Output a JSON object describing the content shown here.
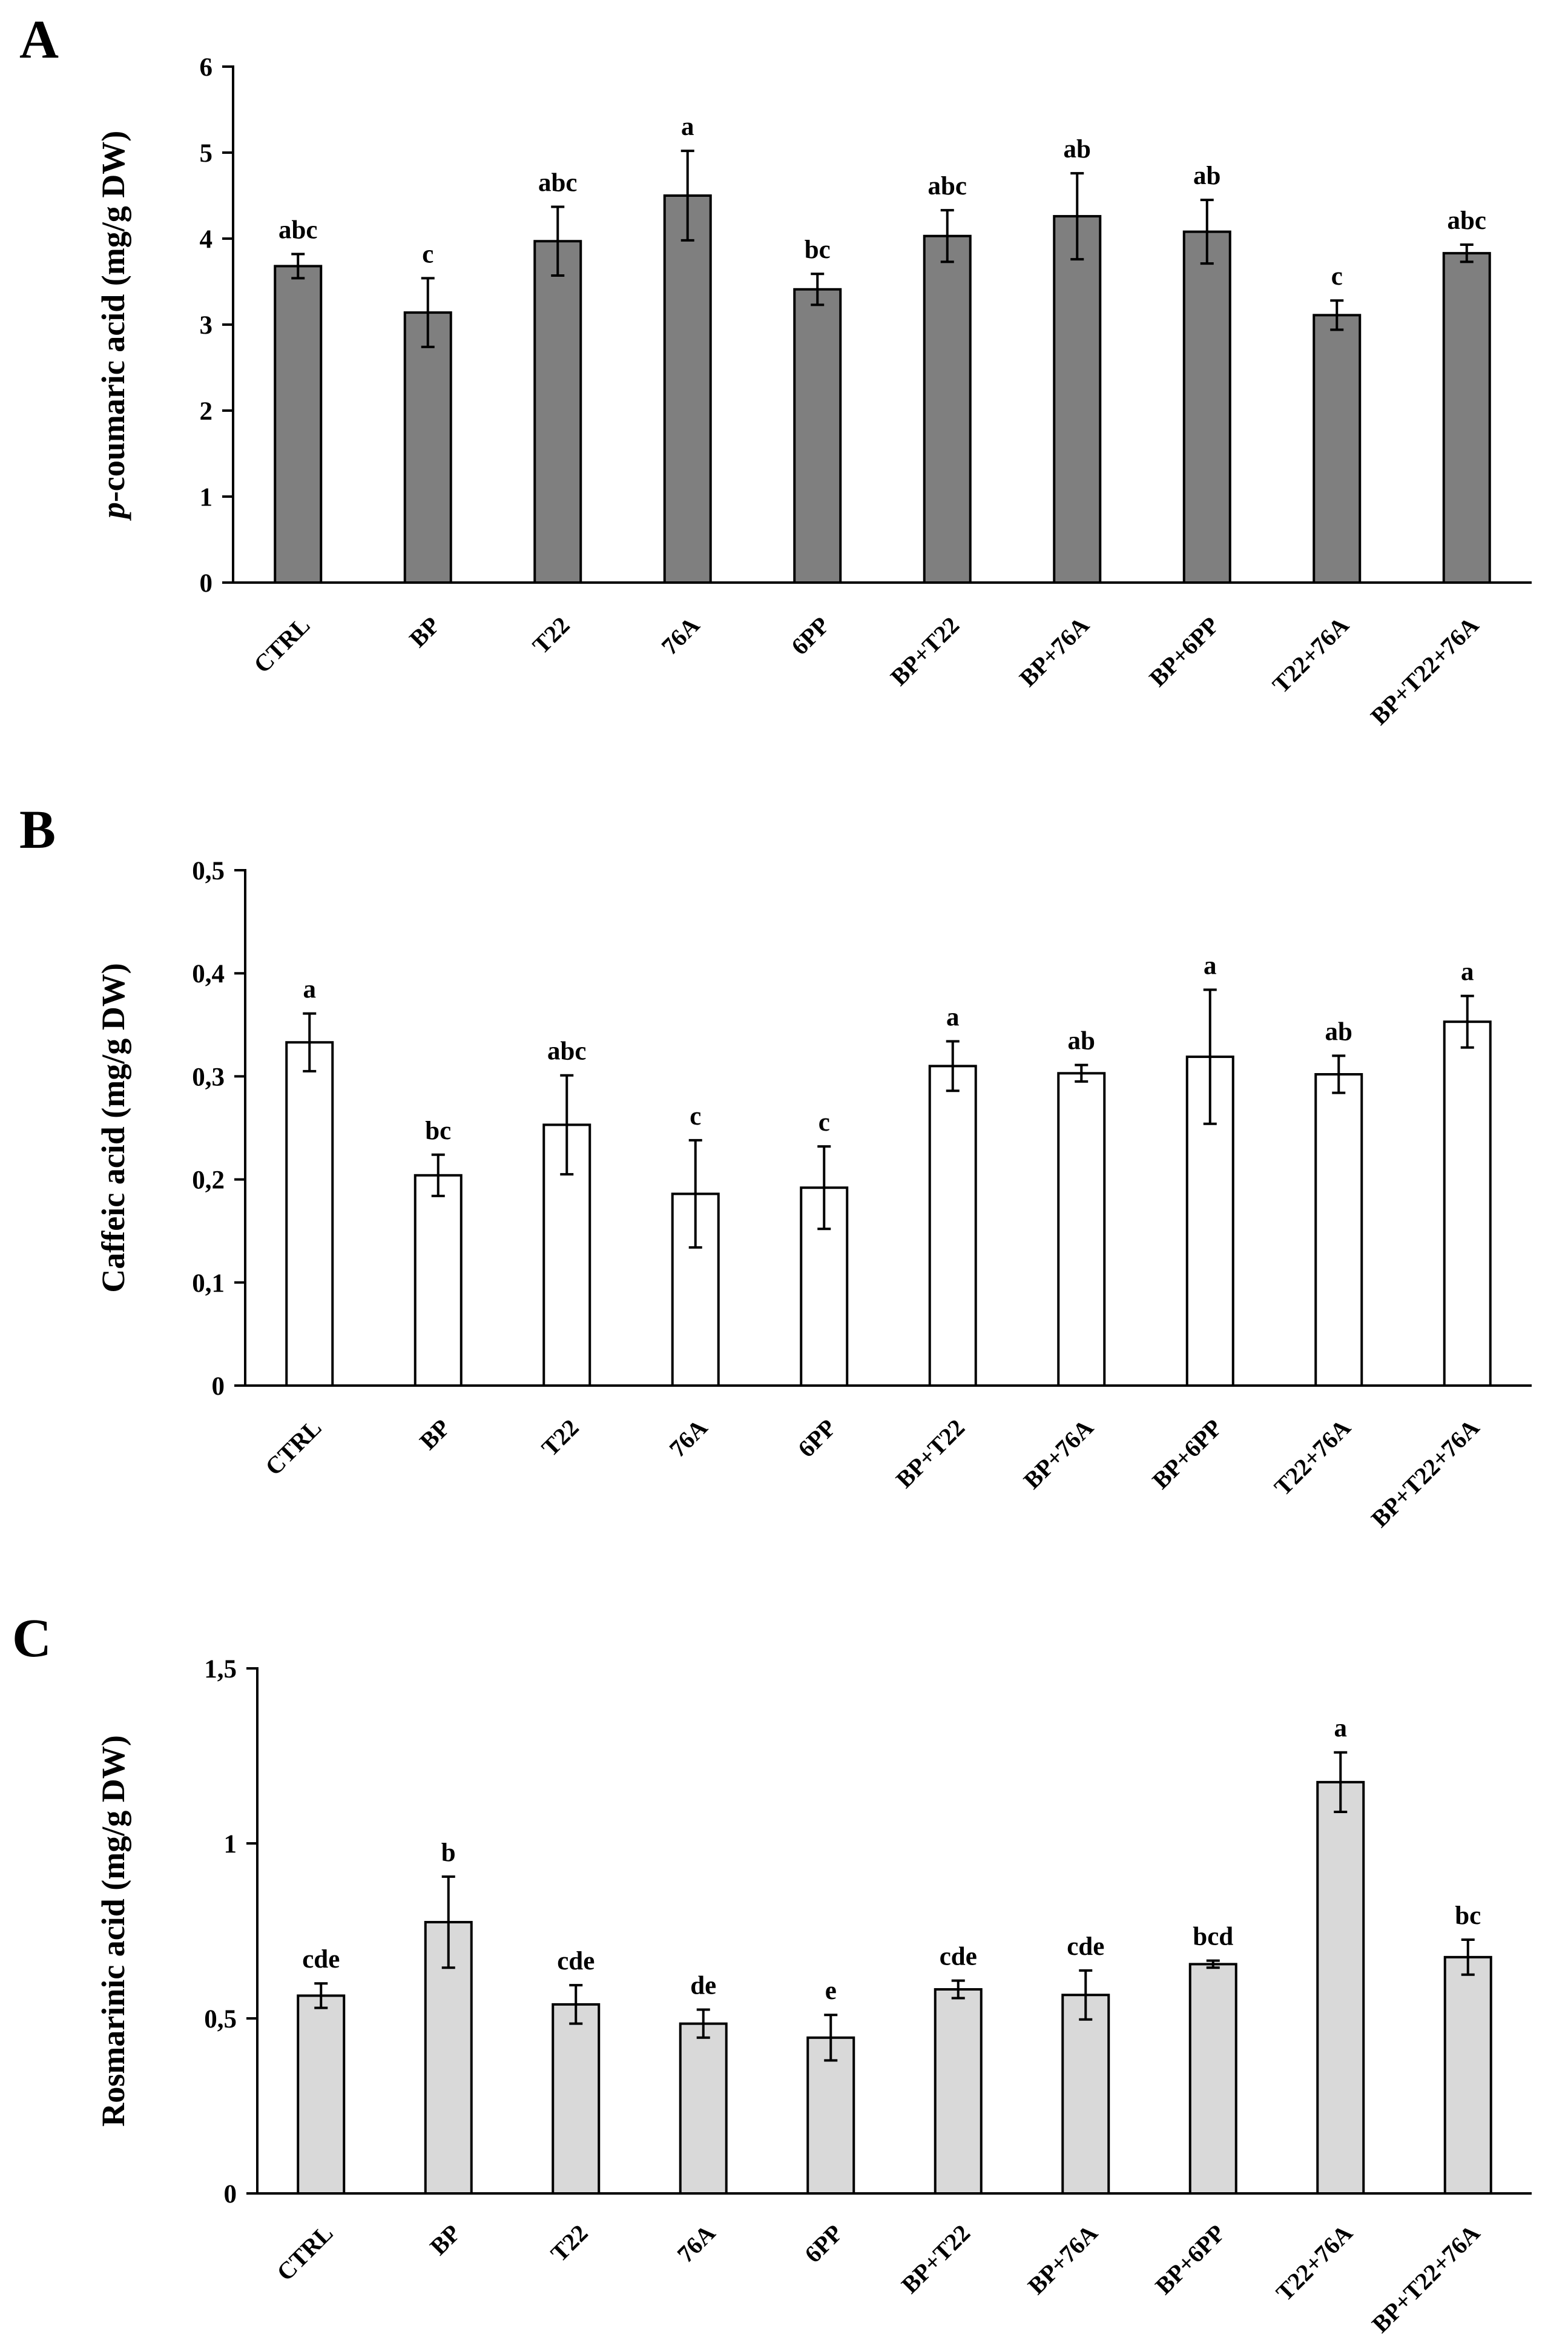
{
  "chart_data": [
    {
      "panel": "A",
      "type": "bar",
      "ylabel_prefix": "p",
      "ylabel_rest": "-coumaric acid (mg/g DW)",
      "ylim": [
        0,
        6
      ],
      "yticks": [
        "0",
        "1",
        "2",
        "3",
        "4",
        "5",
        "6"
      ],
      "tick_values": [
        0,
        1,
        2,
        3,
        4,
        5,
        6
      ],
      "categories": [
        "CTRL",
        "BP",
        "T22",
        "76A",
        "6PP",
        "BP+T22",
        "BP+76A",
        "BP+6PP",
        "T22+76A",
        "BP+T22+76A"
      ],
      "values": [
        3.68,
        3.14,
        3.97,
        4.5,
        3.41,
        4.03,
        4.26,
        4.08,
        3.11,
        3.83
      ],
      "errors": [
        0.14,
        0.4,
        0.4,
        0.52,
        0.18,
        0.3,
        0.5,
        0.37,
        0.17,
        0.1
      ],
      "letters": [
        "abc",
        "c",
        "abc",
        "a",
        "bc",
        "abc",
        "ab",
        "ab",
        "c",
        "abc"
      ],
      "bar_color": "#7f7f7f"
    },
    {
      "panel": "B",
      "type": "bar",
      "ylabel_prefix": "",
      "ylabel_rest": "Caffeic acid (mg/g DW)",
      "ylim": [
        0,
        0.5
      ],
      "yticks": [
        "0",
        "0,1",
        "0,2",
        "0,3",
        "0,4",
        "0,5"
      ],
      "tick_values": [
        0,
        0.1,
        0.2,
        0.3,
        0.4,
        0.5
      ],
      "categories": [
        "CTRL",
        "BP",
        "T22",
        "76A",
        "6PP",
        "BP+T22",
        "BP+76A",
        "BP+6PP",
        "T22+76A",
        "BP+T22+76A"
      ],
      "values": [
        0.333,
        0.204,
        0.253,
        0.186,
        0.192,
        0.31,
        0.303,
        0.319,
        0.302,
        0.353
      ],
      "errors": [
        0.028,
        0.02,
        0.048,
        0.052,
        0.04,
        0.024,
        0.008,
        0.065,
        0.018,
        0.025
      ],
      "letters": [
        "a",
        "bc",
        "abc",
        "c",
        "c",
        "a",
        "ab",
        "a",
        "ab",
        "a"
      ],
      "bar_color": "#ffffff"
    },
    {
      "panel": "C",
      "type": "bar",
      "ylabel_prefix": "",
      "ylabel_rest": "Rosmarinic acid (mg/g DW)",
      "ylim": [
        0,
        1.5
      ],
      "yticks": [
        "0",
        "0,5",
        "1",
        "1,5"
      ],
      "tick_values": [
        0,
        0.5,
        1,
        1.5
      ],
      "categories": [
        "CTRL",
        "BP",
        "T22",
        "76A",
        "6PP",
        "BP+T22",
        "BP+76A",
        "BP+6PP",
        "T22+76A",
        "BP+T22+76A"
      ],
      "values": [
        0.565,
        0.775,
        0.54,
        0.485,
        0.445,
        0.583,
        0.567,
        0.655,
        1.175,
        0.675
      ],
      "errors": [
        0.035,
        0.13,
        0.055,
        0.04,
        0.065,
        0.025,
        0.07,
        0.01,
        0.085,
        0.05
      ],
      "letters": [
        "cde",
        "b",
        "cde",
        "de",
        "e",
        "cde",
        "cde",
        "bcd",
        "a",
        "bc"
      ],
      "bar_color": "#d9d9d9"
    }
  ]
}
